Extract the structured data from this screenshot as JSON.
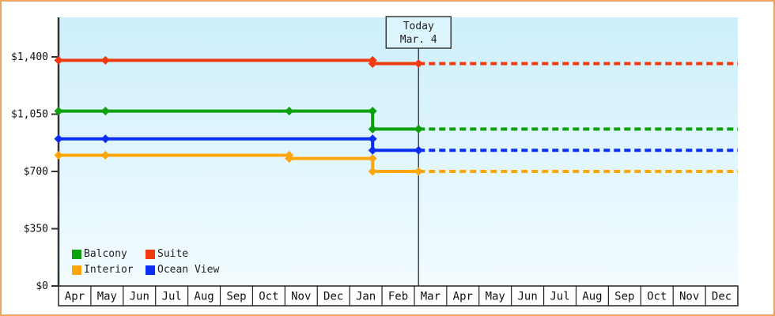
{
  "page": {
    "background": "#ffffff",
    "border_color": "#eca45e"
  },
  "chart_data": {
    "type": "line",
    "style": "step",
    "title": "",
    "y_axis": {
      "min": 0,
      "max": 1400,
      "ticks": [
        {
          "label": "$1,400",
          "value": 1400
        },
        {
          "label": "$1,050",
          "value": 1050
        },
        {
          "label": "$700",
          "value": 700
        },
        {
          "label": "$350",
          "value": 350
        },
        {
          "label": "$0",
          "value": 0
        }
      ]
    },
    "x_axis": {
      "months": [
        "Apr",
        "May",
        "Jun",
        "Jul",
        "Aug",
        "Sep",
        "Oct",
        "Nov",
        "Dec",
        "Jan",
        "Feb",
        "Mar",
        "Apr",
        "May",
        "Jun",
        "Jul",
        "Aug",
        "Sep",
        "Oct",
        "Nov",
        "Dec"
      ]
    },
    "today": {
      "line1": "Today",
      "line2": "Mar. 4",
      "month_index": 11.13
    },
    "forecast": {
      "style": "dashed",
      "to_month_index": 21
    },
    "series": [
      {
        "name": "Balcony",
        "color": "#0ca00c",
        "points": [
          {
            "m": 0,
            "price": 1069
          },
          {
            "m": 1.45,
            "price": 1069
          },
          {
            "m": 7.13,
            "price": 1069
          },
          {
            "m": 9.71,
            "price": 959
          }
        ]
      },
      {
        "name": "Suite",
        "color": "#f03a10",
        "points": [
          {
            "m": 0,
            "price": 1379
          },
          {
            "m": 1.45,
            "price": 1379
          },
          {
            "m": 9.71,
            "price": 1359
          }
        ]
      },
      {
        "name": "Interior",
        "color": "#ffa60d",
        "points": [
          {
            "m": 0,
            "price": 799
          },
          {
            "m": 1.45,
            "price": 799
          },
          {
            "m": 7.13,
            "price": 779
          },
          {
            "m": 9.71,
            "price": 700
          }
        ]
      },
      {
        "name": "Ocean View",
        "color": "#0a2ef2",
        "points": [
          {
            "m": 0,
            "price": 899
          },
          {
            "m": 1.45,
            "price": 899
          },
          {
            "m": 9.71,
            "price": 829
          }
        ]
      }
    ],
    "colors": {
      "plot_bg_top": "#cdeffb",
      "plot_bg_bottom": "#f3fcff",
      "axis": "#333333",
      "band_border": "#222222",
      "today_line": "#444444",
      "today_box_fill": "#dcf4fc",
      "today_box_border": "#3a3a3a"
    }
  }
}
